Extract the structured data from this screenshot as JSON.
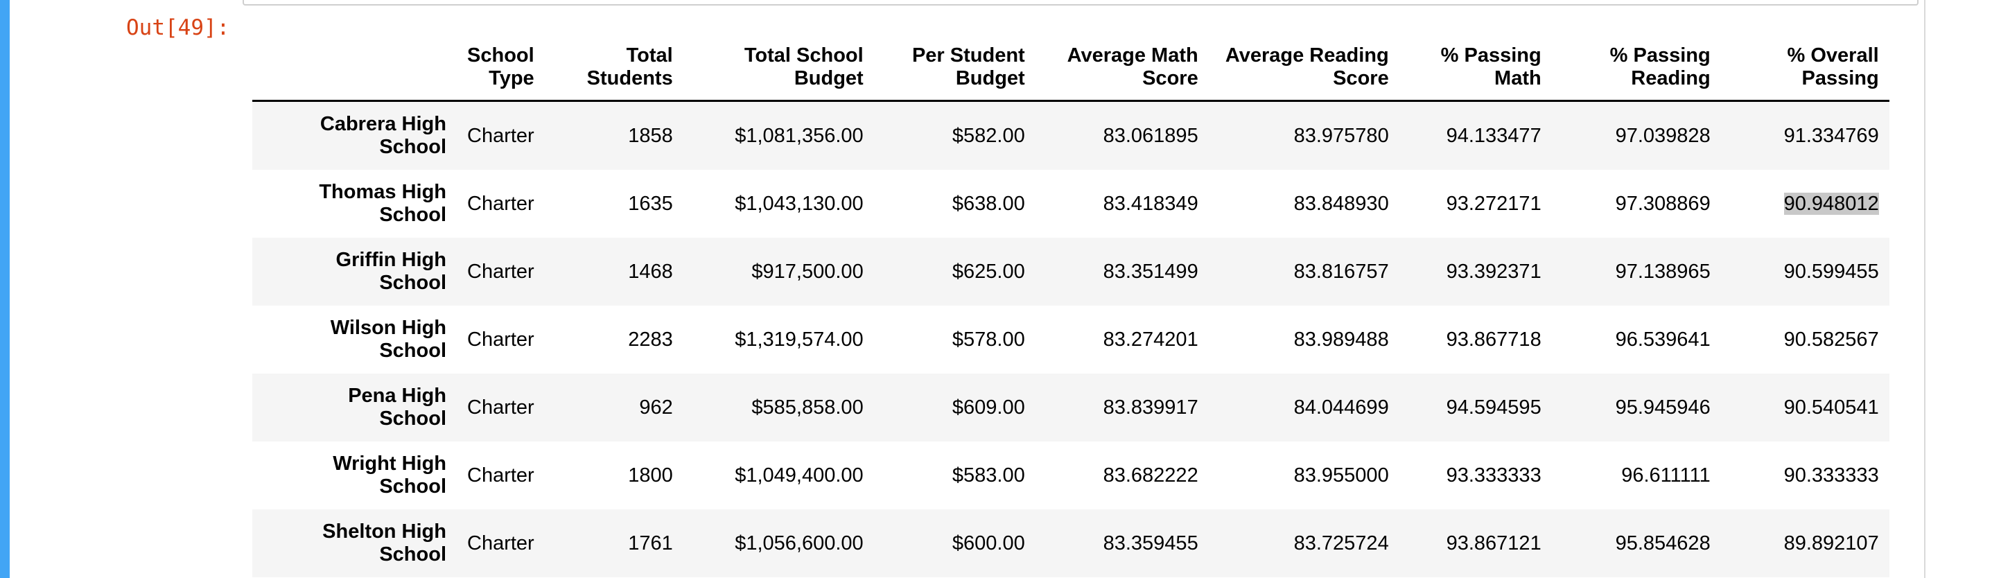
{
  "prompt": "Out[49]:",
  "columns": {
    "school_type": [
      "School",
      "Type"
    ],
    "total_students": [
      "Total",
      "Students"
    ],
    "total_school_budget": [
      "Total School",
      "Budget"
    ],
    "per_student_budget": [
      "Per Student",
      "Budget"
    ],
    "average_math_score": [
      "Average Math",
      "Score"
    ],
    "average_reading_score": [
      "Average Reading",
      "Score"
    ],
    "pct_passing_math": [
      "% Passing",
      "Math"
    ],
    "pct_passing_reading": [
      "% Passing",
      "Reading"
    ],
    "pct_overall_passing": [
      "% Overall",
      "Passing"
    ]
  },
  "rows": [
    {
      "name": [
        "Cabrera High",
        "School"
      ],
      "type": "Charter",
      "total": "1858",
      "budget": "$1,081,356.00",
      "per": "$582.00",
      "math": "83.061895",
      "read": "83.975780",
      "pmath": "94.133477",
      "pread": "97.039828",
      "over": "91.334769"
    },
    {
      "name": [
        "Thomas High",
        "School"
      ],
      "type": "Charter",
      "total": "1635",
      "budget": "$1,043,130.00",
      "per": "$638.00",
      "math": "83.418349",
      "read": "83.848930",
      "pmath": "93.272171",
      "pread": "97.308869",
      "over": "90.948012"
    },
    {
      "name": [
        "Griffin High",
        "School"
      ],
      "type": "Charter",
      "total": "1468",
      "budget": "$917,500.00",
      "per": "$625.00",
      "math": "83.351499",
      "read": "83.816757",
      "pmath": "93.392371",
      "pread": "97.138965",
      "over": "90.599455"
    },
    {
      "name": [
        "Wilson High",
        "School"
      ],
      "type": "Charter",
      "total": "2283",
      "budget": "$1,319,574.00",
      "per": "$578.00",
      "math": "83.274201",
      "read": "83.989488",
      "pmath": "93.867718",
      "pread": "96.539641",
      "over": "90.582567"
    },
    {
      "name": [
        "Pena High",
        "School"
      ],
      "type": "Charter",
      "total": "962",
      "budget": "$585,858.00",
      "per": "$609.00",
      "math": "83.839917",
      "read": "84.044699",
      "pmath": "94.594595",
      "pread": "95.945946",
      "over": "90.540541"
    },
    {
      "name": [
        "Wright High",
        "School"
      ],
      "type": "Charter",
      "total": "1800",
      "budget": "$1,049,400.00",
      "per": "$583.00",
      "math": "83.682222",
      "read": "83.955000",
      "pmath": "93.333333",
      "pread": "96.611111",
      "over": "90.333333"
    },
    {
      "name": [
        "Shelton High",
        "School"
      ],
      "type": "Charter",
      "total": "1761",
      "budget": "$1,056,600.00",
      "per": "$600.00",
      "math": "83.359455",
      "read": "83.725724",
      "pmath": "93.867121",
      "pread": "95.854628",
      "over": "89.892107"
    }
  ],
  "selection": {
    "row": 1,
    "column": "over",
    "text": "90.948012"
  },
  "colors": {
    "cell_bar": "#42a5f5",
    "prompt": "#d84315",
    "stripe": "#f5f5f5",
    "selection": "#c8c8c8"
  }
}
